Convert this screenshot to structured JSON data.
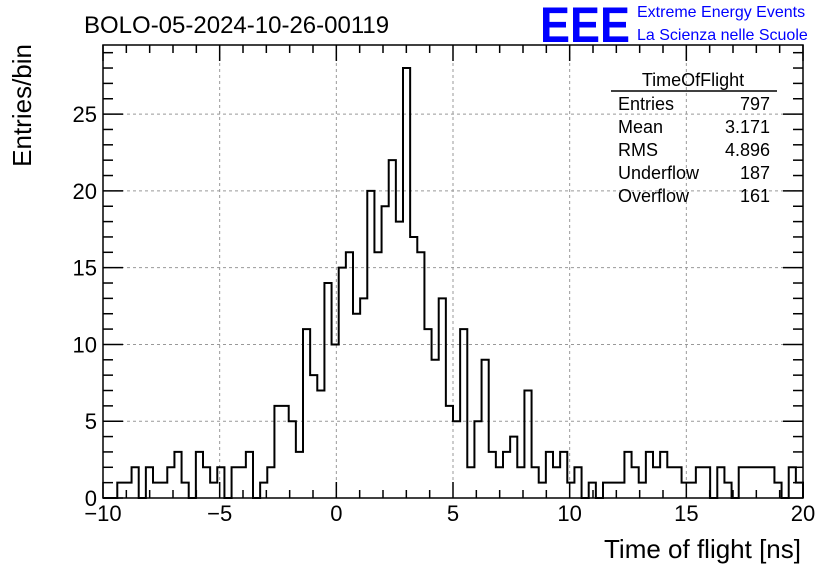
{
  "header": {
    "title": "BOLO-05-2024-10-26-00119",
    "logo_text": "EEE",
    "logo_line1": "Extreme Energy Events",
    "logo_line2": "La Scienza nelle Scuole",
    "logo_color": "#0000ff"
  },
  "stats": {
    "name": "TimeOfFlight",
    "rows": [
      {
        "label": "Entries",
        "value": "797"
      },
      {
        "label": "Mean",
        "value": "3.171"
      },
      {
        "label": "RMS",
        "value": "4.896"
      },
      {
        "label": "Underflow",
        "value": "187"
      },
      {
        "label": "Overflow",
        "value": "161"
      }
    ]
  },
  "chart_data": {
    "type": "bar",
    "style": "step-histogram",
    "title": "BOLO-05-2024-10-26-00119",
    "xlabel": "Time of flight [ns]",
    "ylabel": "Entries/bin",
    "xlim": [
      -10,
      20
    ],
    "ylim": [
      0,
      29.5
    ],
    "grid": true,
    "bin_width": 0.333,
    "x_ticks": [
      -10,
      -5,
      0,
      5,
      10,
      15,
      20
    ],
    "x_tick_labels": [
      "−10",
      "−5",
      "0",
      "5",
      "10",
      "15",
      "20"
    ],
    "y_ticks": [
      0,
      5,
      10,
      15,
      20,
      25
    ],
    "y_tick_labels": [
      "0",
      "5",
      "10",
      "15",
      "20",
      "25"
    ],
    "line_color": "#000000",
    "values": [
      0,
      0,
      1,
      1,
      2,
      0,
      2,
      1,
      1,
      2,
      3,
      1,
      0,
      3,
      2,
      1,
      2,
      0,
      2,
      2,
      3,
      0,
      1,
      2,
      6,
      6,
      5,
      3,
      11,
      8,
      7,
      14,
      10,
      15,
      16,
      12,
      13,
      20,
      16,
      19,
      22,
      18,
      28,
      17,
      16,
      11,
      9,
      13,
      6,
      5,
      11,
      2,
      5,
      9,
      3,
      2,
      3,
      4,
      2,
      7,
      2,
      1,
      3,
      2,
      3,
      1,
      2,
      0,
      1,
      0,
      1,
      1,
      1,
      3,
      2,
      1,
      3,
      2,
      3,
      2,
      2,
      1,
      1,
      2,
      2,
      0,
      2,
      1,
      0,
      2,
      2,
      2,
      2,
      2,
      1,
      0,
      2,
      1
    ]
  }
}
